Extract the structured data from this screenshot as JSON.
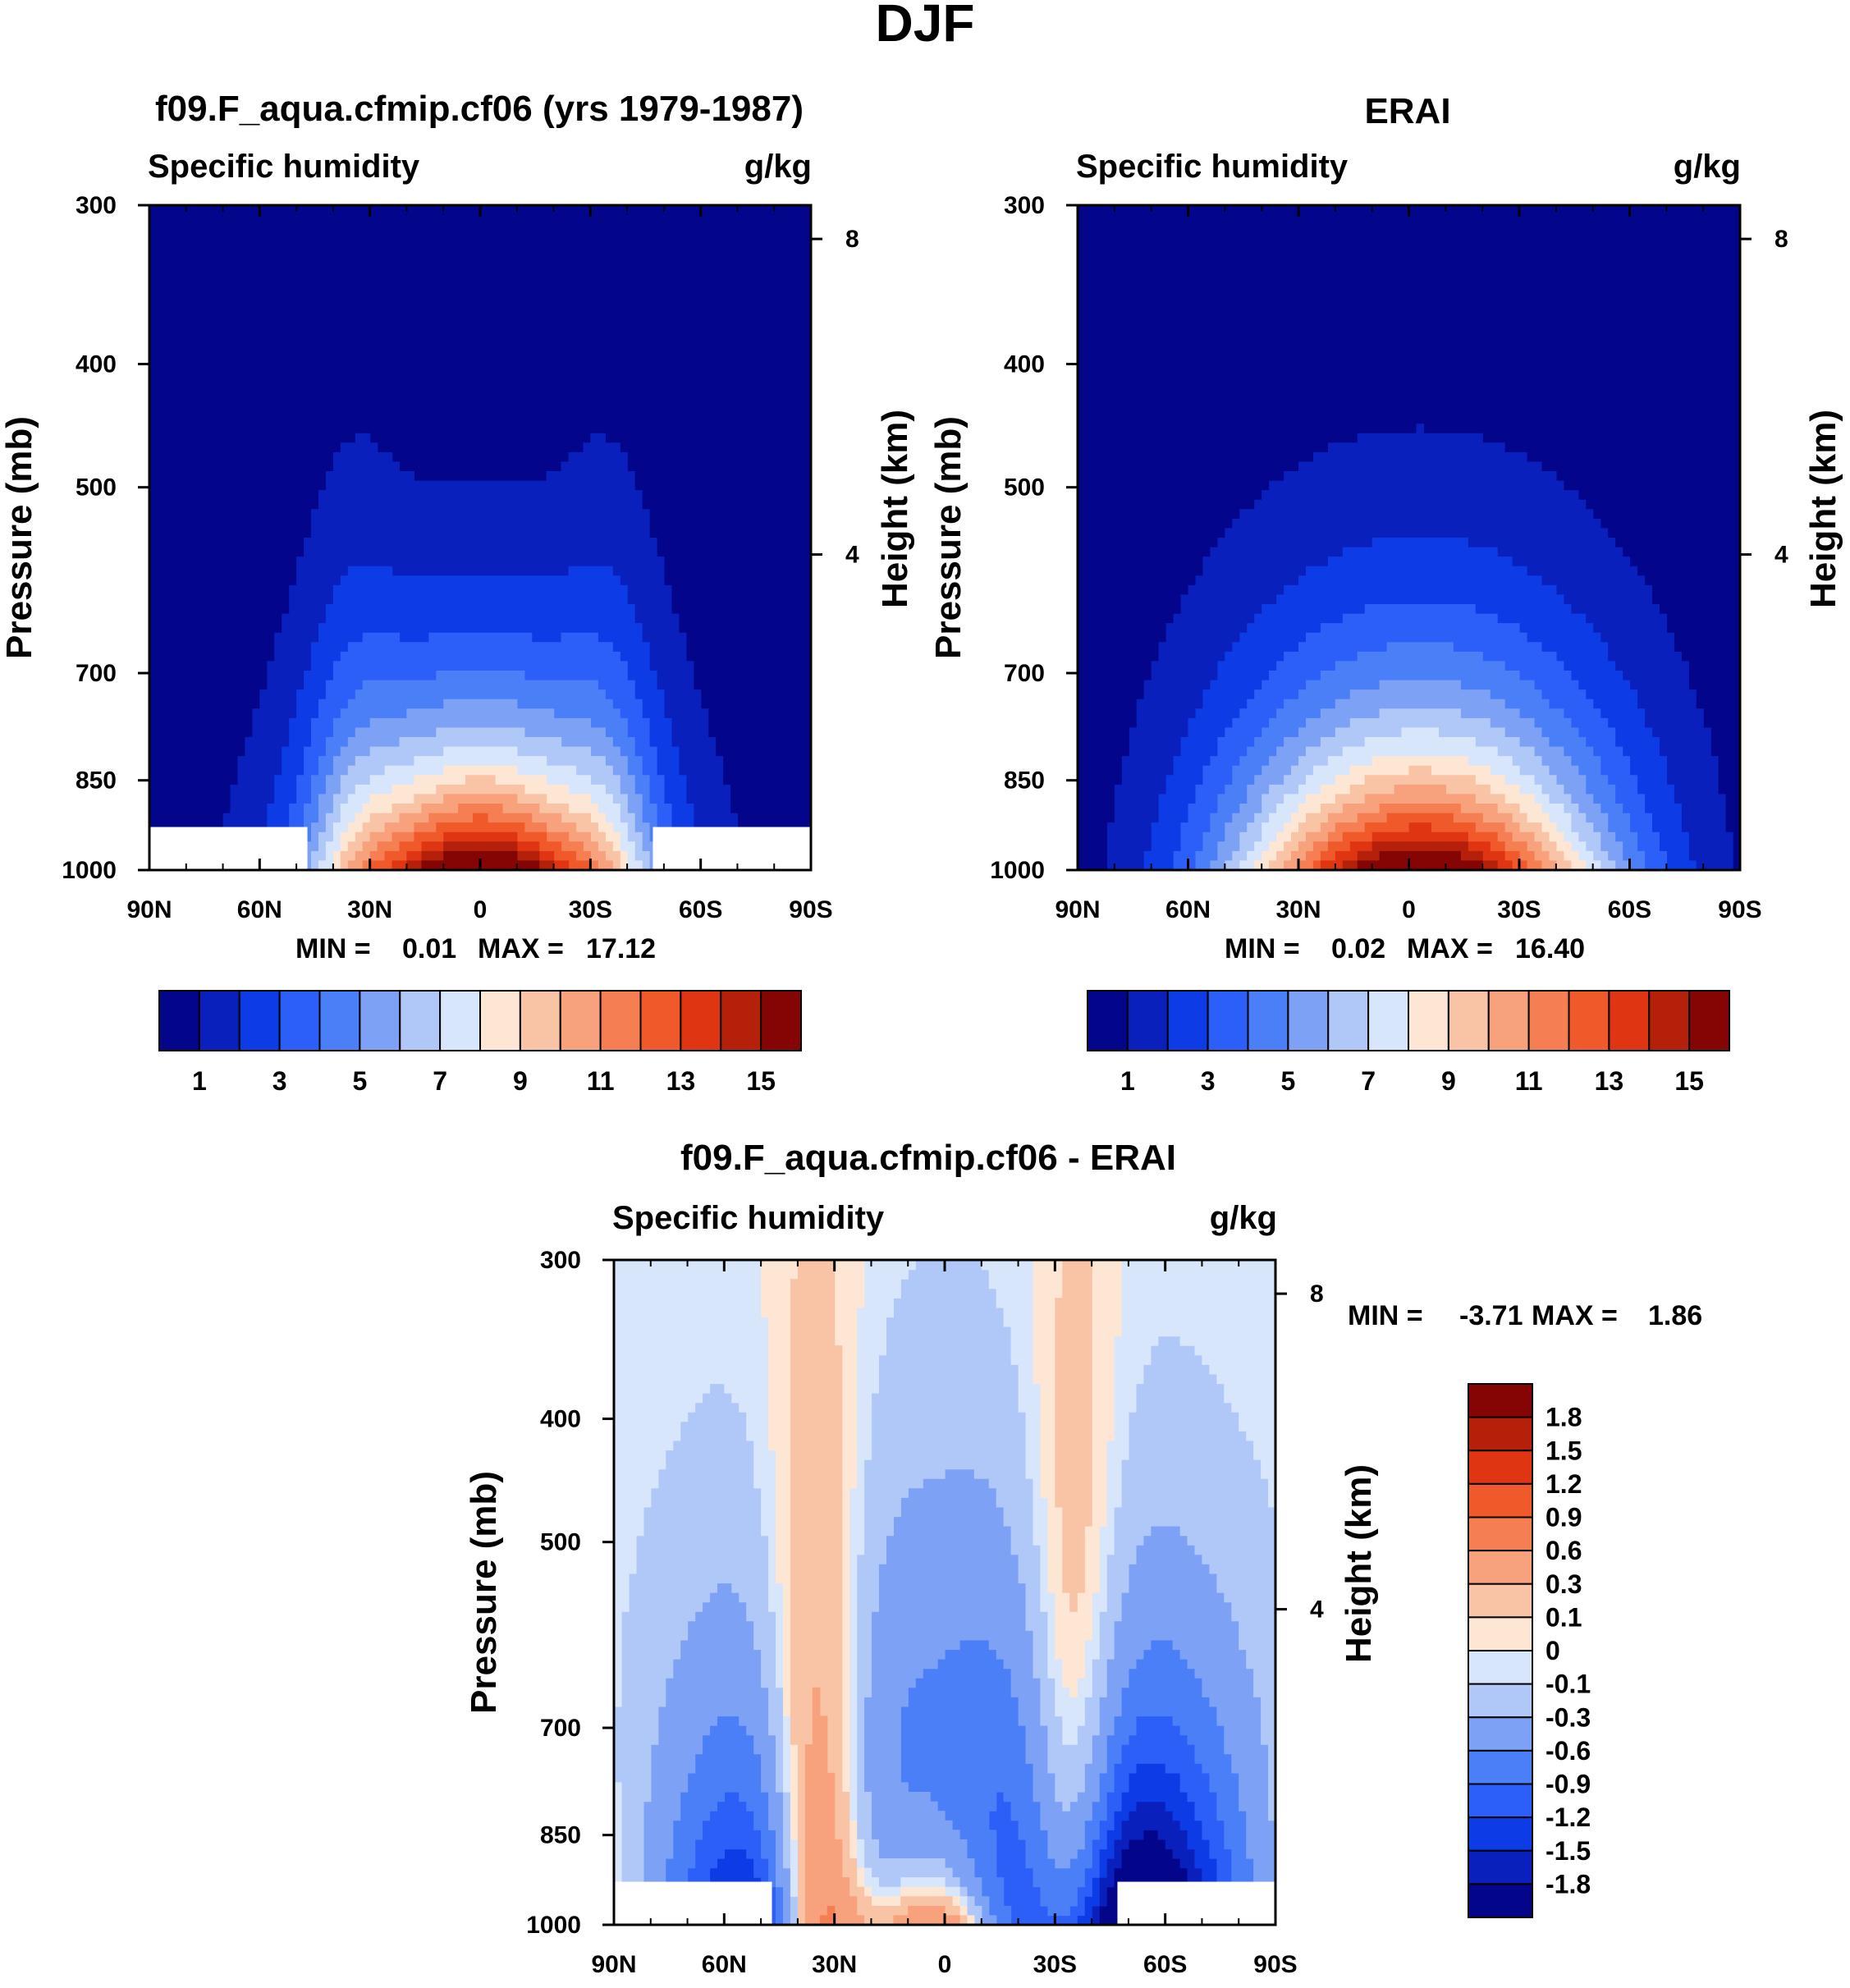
{
  "figure": {
    "title": "DJF"
  },
  "chart_data": [
    {
      "type": "contour",
      "id": "model",
      "title": "f09.F_aqua.cfmip.cf06 (yrs 1979-1987)",
      "left_label": "Specific humidity",
      "right_label": "g/kg",
      "ylabel": "Pressure (mb)",
      "ylabel_right": "Height (km)",
      "x_ticks": [
        "90N",
        "60N",
        "30N",
        "0",
        "30S",
        "60S",
        "90S"
      ],
      "y_ticks": [
        "300",
        "400",
        "500",
        "700",
        "850",
        "1000"
      ],
      "y_ticks_right": [
        "8",
        "4"
      ],
      "ylim": [
        1000,
        300
      ],
      "min_label": "MIN =",
      "min_value": "0.01",
      "max_label": "MAX =",
      "max_value": "17.12",
      "min": 0.01,
      "max": 17.12,
      "missing_below_mb": 925,
      "missing_lat_ranges": [
        [
          "90N",
          "47N"
        ],
        [
          "47S",
          "90S"
        ]
      ]
    },
    {
      "type": "contour",
      "id": "obs",
      "title": "ERAI",
      "left_label": "Specific humidity",
      "right_label": "g/kg",
      "ylabel": "Pressure (mb)",
      "ylabel_right": "Height (km)",
      "x_ticks": [
        "90N",
        "60N",
        "30N",
        "0",
        "30S",
        "60S",
        "90S"
      ],
      "y_ticks": [
        "300",
        "400",
        "500",
        "700",
        "850",
        "1000"
      ],
      "y_ticks_right": [
        "8",
        "4"
      ],
      "ylim": [
        1000,
        300
      ],
      "min_label": "MIN =",
      "min_value": "0.02",
      "max_label": "MAX =",
      "max_value": "16.40",
      "min": 0.02,
      "max": 16.4
    },
    {
      "type": "contour",
      "id": "diff",
      "title": "f09.F_aqua.cfmip.cf06 - ERAI",
      "left_label": "Specific humidity",
      "right_label": "g/kg",
      "ylabel": "Pressure (mb)",
      "ylabel_right": "Height (km)",
      "x_ticks": [
        "90N",
        "60N",
        "30N",
        "0",
        "30S",
        "60S",
        "90S"
      ],
      "y_ticks": [
        "300",
        "400",
        "500",
        "700",
        "850",
        "1000"
      ],
      "y_ticks_right": [
        "8",
        "4"
      ],
      "ylim": [
        1000,
        300
      ],
      "min_label": "MIN =",
      "min_value": "-3.71",
      "max_label": "MAX =",
      "max_value": "1.86",
      "min": -3.71,
      "max": 1.86
    }
  ],
  "colorbar_main": {
    "levels": [
      1,
      2,
      3,
      4,
      5,
      6,
      7,
      8,
      9,
      10,
      11,
      12,
      13,
      14,
      15
    ],
    "labels": [
      "1",
      "3",
      "5",
      "7",
      "9",
      "11",
      "13",
      "15"
    ],
    "colors": [
      "#03058a",
      "#0a20bc",
      "#0d3be6",
      "#2b5ff7",
      "#4a7ff7",
      "#7da1f4",
      "#b0c8f7",
      "#d8e6fb",
      "#fde6d4",
      "#f9c3a5",
      "#f7a27c",
      "#f57f52",
      "#f05a2a",
      "#e03512",
      "#b5200b",
      "#850505"
    ]
  },
  "colorbar_diff": {
    "levels": [
      -1.8,
      -1.5,
      -1.2,
      -0.9,
      -0.6,
      -0.3,
      -0.1,
      0,
      0.1,
      0.3,
      0.6,
      0.9,
      1.2,
      1.5,
      1.8
    ],
    "labels": [
      "1.8",
      "1.5",
      "1.2",
      "0.9",
      "0.6",
      "0.3",
      "0.1",
      "0",
      "-0.1",
      "-0.3",
      "-0.6",
      "-0.9",
      "-1.2",
      "-1.5",
      "-1.8"
    ],
    "colors": [
      "#03058a",
      "#0a20bc",
      "#0d3be6",
      "#2b5ff7",
      "#4a7ff7",
      "#7da1f4",
      "#b0c8f7",
      "#d8e6fb",
      "#fde6d4",
      "#f9c3a5",
      "#f7a27c",
      "#f57f52",
      "#f05a2a",
      "#e03512",
      "#b5200b",
      "#850505"
    ]
  }
}
